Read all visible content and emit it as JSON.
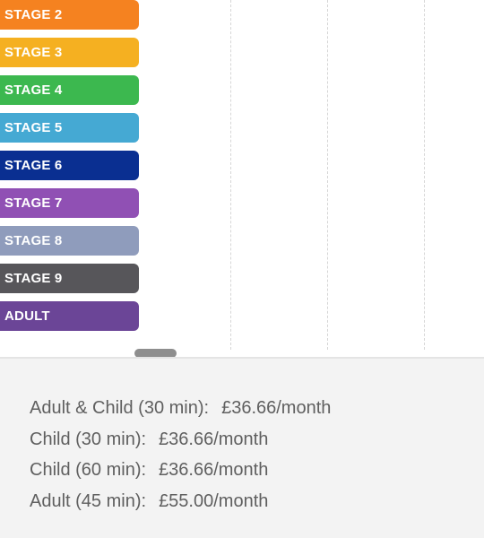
{
  "stages": [
    {
      "label": "STAGE 2",
      "color": "#f58220"
    },
    {
      "label": "STAGE 3",
      "color": "#f5b021"
    },
    {
      "label": "STAGE 4",
      "color": "#3cb84f"
    },
    {
      "label": "STAGE 5",
      "color": "#45a9d3"
    },
    {
      "label": "STAGE 6",
      "color": "#0a2f91"
    },
    {
      "label": "STAGE 7",
      "color": "#9050b4"
    },
    {
      "label": "STAGE 8",
      "color": "#8f9cbc"
    },
    {
      "label": "STAGE 9",
      "color": "#57565a"
    },
    {
      "label": "ADULT",
      "color": "#6b4597"
    }
  ],
  "pricing": [
    {
      "label": "Adult & Child (30 min):",
      "price": "£36.66/month"
    },
    {
      "label": "Child (30 min):",
      "price": "£36.66/month"
    },
    {
      "label": "Child (60 min):",
      "price": "£36.66/month"
    },
    {
      "label": "Adult (45 min):",
      "price": "£55.00/month"
    }
  ]
}
